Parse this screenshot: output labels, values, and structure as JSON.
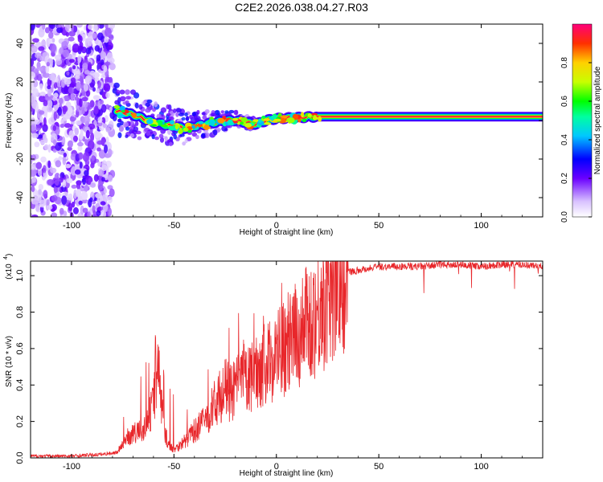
{
  "title": "C2E2.2026.038.04.27.R03",
  "chart_data": [
    {
      "type": "heatmap",
      "xlabel": "Height of straight line (km)",
      "ylabel": "Frequency (Hz)",
      "xlim": [
        -120,
        130
      ],
      "ylim": [
        -50,
        50
      ],
      "xticks": [
        "-100",
        "-50",
        "0",
        "50",
        "100"
      ],
      "xtick_values": [
        -100,
        -50,
        0,
        50,
        100
      ],
      "yticks": [
        "-40",
        "-20",
        "0",
        "20",
        "40"
      ],
      "ytick_values": [
        -40,
        -20,
        0,
        20,
        40
      ],
      "colorbar": {
        "label": "Normalized spectral amplitude",
        "ticks": [
          "0.0",
          "0.2",
          "0.4",
          "0.6",
          "0.8"
        ],
        "tick_values": [
          0.0,
          0.2,
          0.4,
          0.6,
          0.8
        ],
        "range": [
          0,
          1
        ]
      },
      "noise_region_x": [
        -120,
        -80
      ],
      "ridge": {
        "x": [
          -78,
          -70,
          -60,
          -50,
          -45,
          -40,
          -35,
          -30,
          -25,
          -20,
          -15,
          -10,
          -5,
          0,
          10,
          20,
          30,
          50,
          80,
          100,
          130
        ],
        "y": [
          5,
          3,
          -1,
          -3,
          -4,
          -3,
          -2,
          -1,
          0,
          0,
          -1,
          -2,
          0,
          1,
          1.5,
          2,
          2,
          2,
          2,
          2,
          2
        ]
      },
      "grid": false
    },
    {
      "type": "line",
      "xlabel": "Height of straight line (km)",
      "ylabel": "SNR (10 * v/v)",
      "yscale_label": "(x10",
      "yscale_exponent": "4",
      "xlim": [
        -120,
        130
      ],
      "ylim": [
        0,
        1.08
      ],
      "xticks": [
        "-100",
        "-50",
        "0",
        "50",
        "100"
      ],
      "xtick_values": [
        -100,
        -50,
        0,
        50,
        100
      ],
      "yticks": [
        "0.0",
        "0.2",
        "0.4",
        "0.6",
        "0.8",
        "1.0"
      ],
      "ytick_values": [
        0.0,
        0.2,
        0.4,
        0.6,
        0.8,
        1.0
      ],
      "series": [
        {
          "color": "#e8262a",
          "x": [
            -120,
            -100,
            -85,
            -78,
            -75,
            -72,
            -68,
            -64,
            -60,
            -58,
            -56,
            -54,
            -52,
            -50,
            -47,
            -44,
            -40,
            -37,
            -34,
            -31,
            -28,
            -25,
            -22,
            -19,
            -16,
            -13,
            -10,
            -7,
            -4,
            -1,
            2,
            5,
            8,
            11,
            14,
            17,
            20,
            23,
            26,
            29,
            32,
            35,
            40,
            45,
            50,
            60,
            70,
            80,
            90,
            100,
            110,
            120,
            130
          ],
          "values": [
            0.01,
            0.01,
            0.02,
            0.03,
            0.08,
            0.12,
            0.14,
            0.16,
            0.3,
            0.55,
            0.28,
            0.12,
            0.06,
            0.05,
            0.07,
            0.1,
            0.15,
            0.18,
            0.22,
            0.28,
            0.33,
            0.38,
            0.35,
            0.4,
            0.45,
            0.42,
            0.48,
            0.5,
            0.52,
            0.55,
            0.6,
            0.58,
            0.65,
            0.68,
            0.72,
            0.76,
            0.8,
            0.86,
            0.92,
            0.97,
            1.0,
            1.02,
            1.03,
            1.04,
            1.05,
            1.05,
            1.05,
            1.06,
            1.06,
            1.05,
            1.06,
            1.06,
            1.05
          ]
        }
      ],
      "grid": false
    }
  ]
}
